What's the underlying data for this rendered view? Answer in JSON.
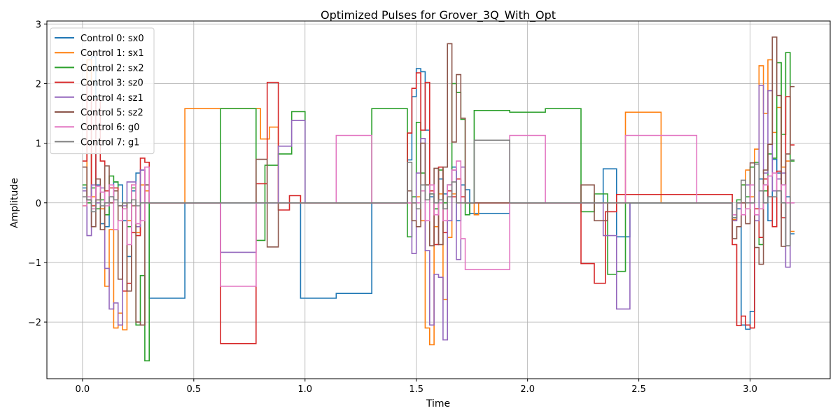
{
  "chart_data": {
    "type": "line",
    "step": "post",
    "title": "Optimized Pulses for Grover_3Q_With_Opt",
    "xlabel": "Time",
    "ylabel": "Amplitude",
    "xlim": [
      -0.16,
      3.36
    ],
    "ylim": [
      -2.95,
      3.05
    ],
    "xticks": [
      0.0,
      0.5,
      1.0,
      1.5,
      2.0,
      2.5,
      3.0
    ],
    "xtick_labels": [
      "0.0",
      "0.5",
      "1.0",
      "1.5",
      "2.0",
      "2.5",
      "3.0"
    ],
    "yticks": [
      -2,
      -1,
      0,
      1,
      2,
      3
    ],
    "ytick_labels": [
      "−2",
      "−1",
      "0",
      "1",
      "2",
      "3"
    ],
    "grid": true,
    "legend_position": "top-left",
    "series": [
      {
        "name": "Control 0: sx0",
        "color": "#1f77b4",
        "x": [
          0.0,
          0.02,
          0.04,
          0.06,
          0.08,
          0.1,
          0.12,
          0.14,
          0.16,
          0.18,
          0.2,
          0.22,
          0.24,
          0.26,
          0.28,
          0.3,
          0.46,
          0.62,
          0.78,
          0.98,
          1.14,
          1.3,
          1.46,
          1.48,
          1.5,
          1.52,
          1.54,
          1.56,
          1.58,
          1.6,
          1.62,
          1.64,
          1.66,
          1.68,
          1.7,
          1.72,
          1.74,
          1.76,
          1.92,
          2.08,
          2.24,
          2.34,
          2.4,
          2.46,
          2.92,
          2.94,
          2.96,
          2.98,
          3.0,
          3.02,
          3.04,
          3.06,
          3.08,
          3.1,
          3.12,
          3.14,
          3.16,
          3.18,
          3.2
        ],
        "y": [
          0.25,
          0.05,
          2.45,
          0.3,
          -0.35,
          -0.4,
          0.1,
          0.35,
          0.3,
          -0.3,
          -0.9,
          0.2,
          0.5,
          0.55,
          0.3,
          -1.6,
          0.0,
          0.0,
          0.0,
          -1.6,
          -1.52,
          0.0,
          0.72,
          1.78,
          2.25,
          2.2,
          1.22,
          0.1,
          -0.1,
          0.4,
          0.15,
          0.3,
          0.6,
          -0.3,
          0.3,
          0.22,
          -0.18,
          -0.18,
          0.0,
          0.0,
          0.0,
          0.57,
          -0.57,
          0.0,
          -0.2,
          -0.1,
          -2.05,
          -2.12,
          -1.82,
          -0.2,
          0.4,
          0.3,
          -0.3,
          0.73,
          0.5,
          0.3,
          0.1,
          -0.52,
          -0.52
        ]
      },
      {
        "name": "Control 1: sx1",
        "color": "#ff7f0e",
        "x": [
          0.0,
          0.02,
          0.04,
          0.06,
          0.08,
          0.1,
          0.12,
          0.14,
          0.16,
          0.18,
          0.2,
          0.22,
          0.24,
          0.26,
          0.28,
          0.3,
          0.46,
          0.62,
          0.78,
          0.8,
          0.84,
          0.88,
          0.92,
          0.98,
          1.46,
          1.5,
          1.52,
          1.54,
          1.56,
          1.58,
          1.6,
          1.62,
          1.64,
          1.66,
          1.68,
          1.7,
          1.72,
          1.76,
          1.78,
          2.44,
          2.6,
          2.92,
          2.94,
          2.96,
          2.98,
          3.0,
          3.02,
          3.04,
          3.06,
          3.08,
          3.1,
          3.12,
          3.14,
          3.16,
          3.18,
          3.2
        ],
        "y": [
          -0.05,
          2.4,
          0.1,
          0.05,
          -0.1,
          -1.4,
          -0.45,
          -2.1,
          -1.85,
          -2.13,
          -0.3,
          0.3,
          -0.5,
          0.3,
          0.2,
          0.0,
          1.58,
          1.58,
          1.58,
          1.07,
          1.27,
          0.0,
          0.0,
          0.0,
          0.0,
          0.1,
          -0.3,
          -2.1,
          -2.38,
          -0.4,
          0.15,
          -1.62,
          -0.58,
          0.15,
          0.0,
          0.0,
          0.0,
          -0.2,
          0.0,
          1.52,
          0.0,
          -0.28,
          0.0,
          0.3,
          0.55,
          0.1,
          0.9,
          2.3,
          1.5,
          2.4,
          1.18,
          1.6,
          0.6,
          0.7,
          -0.48,
          -0.48
        ]
      },
      {
        "name": "Control 2: sx2",
        "color": "#2ca02c",
        "x": [
          0.0,
          0.02,
          0.04,
          0.06,
          0.08,
          0.1,
          0.12,
          0.14,
          0.16,
          0.18,
          0.2,
          0.22,
          0.24,
          0.26,
          0.28,
          0.3,
          0.46,
          0.62,
          0.78,
          0.82,
          0.88,
          0.94,
          1.0,
          1.3,
          1.46,
          1.48,
          1.5,
          1.52,
          1.54,
          1.56,
          1.58,
          1.6,
          1.62,
          1.64,
          1.66,
          1.68,
          1.7,
          1.72,
          1.74,
          1.76,
          1.78,
          1.92,
          2.08,
          2.24,
          2.3,
          2.36,
          2.4,
          2.44,
          2.92,
          2.94,
          2.96,
          2.98,
          3.0,
          3.02,
          3.04,
          3.06,
          3.08,
          3.1,
          3.12,
          3.14,
          3.16,
          3.18,
          3.2
        ],
        "y": [
          0.3,
          0.0,
          0.25,
          -0.1,
          0.05,
          -0.2,
          0.45,
          0.35,
          -0.05,
          0.0,
          -0.4,
          0.25,
          -2.05,
          -1.22,
          -2.65,
          0.0,
          0.0,
          1.58,
          -0.63,
          0.63,
          0.82,
          1.53,
          0.0,
          1.58,
          -0.57,
          0.1,
          1.35,
          0.5,
          0.3,
          0.15,
          -0.1,
          0.55,
          0.0,
          0.3,
          2.0,
          1.85,
          1.4,
          -0.2,
          0.0,
          1.55,
          1.55,
          1.52,
          1.58,
          -0.15,
          0.15,
          -1.2,
          -1.15,
          0.0,
          -0.25,
          0.05,
          0.3,
          0.1,
          0.6,
          0.68,
          -0.7,
          0.2,
          0.82,
          0.75,
          2.35,
          1.15,
          2.52,
          0.7,
          0.7
        ]
      },
      {
        "name": "Control 3: sz0",
        "color": "#d62728",
        "x": [
          0.0,
          0.02,
          0.04,
          0.06,
          0.08,
          0.1,
          0.12,
          0.14,
          0.16,
          0.18,
          0.2,
          0.22,
          0.24,
          0.26,
          0.28,
          0.3,
          0.46,
          0.62,
          0.78,
          0.83,
          0.88,
          0.93,
          0.98,
          1.46,
          1.48,
          1.5,
          1.52,
          1.54,
          1.56,
          1.58,
          1.6,
          1.62,
          1.64,
          1.66,
          1.68,
          1.7,
          1.72,
          1.76,
          1.92,
          2.08,
          2.24,
          2.3,
          2.35,
          2.4,
          2.92,
          2.94,
          2.96,
          2.98,
          3.0,
          3.02,
          3.04,
          3.06,
          3.08,
          3.1,
          3.12,
          3.14,
          3.16,
          3.18,
          3.2
        ],
        "y": [
          0.7,
          1.98,
          -0.05,
          1.73,
          0.7,
          0.2,
          0.25,
          0.25,
          -0.05,
          -1.48,
          -1.35,
          -0.5,
          -0.55,
          0.75,
          0.68,
          0.0,
          0.0,
          -2.36,
          0.32,
          2.02,
          -0.12,
          0.12,
          0.0,
          1.17,
          1.92,
          2.18,
          1.22,
          2.02,
          0.2,
          -0.7,
          0.6,
          -0.5,
          0.2,
          0.1,
          0.4,
          0.1,
          0.0,
          0.0,
          0.0,
          0.0,
          -1.02,
          -1.35,
          -0.15,
          0.14,
          -0.7,
          -2.06,
          -1.9,
          -2.05,
          -2.1,
          -0.1,
          -0.58,
          0.4,
          0.1,
          -0.4,
          0.53,
          -0.25,
          1.78,
          0.97,
          0.97
        ]
      },
      {
        "name": "Control 4: sz1",
        "color": "#9467bd",
        "x": [
          0.0,
          0.02,
          0.04,
          0.06,
          0.08,
          0.1,
          0.12,
          0.14,
          0.16,
          0.18,
          0.2,
          0.22,
          0.24,
          0.26,
          0.28,
          0.3,
          0.46,
          0.62,
          0.78,
          0.88,
          0.94,
          1.0,
          1.46,
          1.48,
          1.5,
          1.52,
          1.54,
          1.56,
          1.58,
          1.6,
          1.62,
          1.64,
          1.66,
          1.68,
          1.7,
          1.72,
          1.74,
          1.76,
          2.34,
          2.4,
          2.46,
          2.92,
          2.94,
          2.96,
          2.98,
          3.0,
          3.02,
          3.04,
          3.06,
          3.08,
          3.1,
          3.12,
          3.14,
          3.16,
          3.18,
          3.2
        ],
        "y": [
          0.2,
          -0.55,
          0.3,
          0.0,
          0.25,
          -1.1,
          -1.78,
          -1.68,
          -2.05,
          -0.05,
          0.35,
          0.35,
          -0.4,
          0.55,
          0.0,
          0.0,
          0.0,
          -0.83,
          0.0,
          0.95,
          1.38,
          0.0,
          0.0,
          -0.85,
          0.5,
          1.08,
          -0.8,
          -2.05,
          -1.2,
          -1.25,
          -2.3,
          -0.3,
          0.55,
          -0.95,
          0.6,
          0.0,
          0.0,
          0.0,
          -0.55,
          -1.78,
          0.0,
          -0.3,
          0.0,
          0.0,
          0.3,
          0.0,
          -0.3,
          1.97,
          0.5,
          1.88,
          0.2,
          0.4,
          0.5,
          -1.08,
          0.0,
          0.0
        ]
      },
      {
        "name": "Control 5: sz2",
        "color": "#8c564b",
        "x": [
          0.0,
          0.02,
          0.04,
          0.06,
          0.08,
          0.1,
          0.12,
          0.14,
          0.16,
          0.18,
          0.2,
          0.22,
          0.24,
          0.26,
          0.28,
          0.3,
          0.46,
          0.62,
          0.78,
          0.83,
          0.88,
          0.98,
          1.46,
          1.48,
          1.5,
          1.52,
          1.54,
          1.56,
          1.58,
          1.6,
          1.62,
          1.64,
          1.66,
          1.68,
          1.7,
          1.72,
          1.74,
          1.76,
          2.24,
          2.3,
          2.36,
          2.92,
          2.94,
          2.96,
          2.98,
          3.0,
          3.02,
          3.04,
          3.06,
          3.08,
          3.1,
          3.12,
          3.14,
          3.16,
          3.18,
          3.2
        ],
        "y": [
          0.6,
          0.05,
          -0.4,
          0.4,
          -0.45,
          0.62,
          0.0,
          0.2,
          -1.28,
          0.0,
          -1.48,
          -0.05,
          -2.0,
          -2.05,
          0.3,
          0.0,
          0.0,
          0.0,
          0.73,
          -0.74,
          0.0,
          0.0,
          0.2,
          -0.3,
          -0.4,
          1.0,
          0.3,
          -0.72,
          0.58,
          -0.7,
          0.6,
          2.67,
          1.02,
          2.15,
          1.42,
          0.0,
          0.0,
          0.0,
          0.3,
          -0.3,
          0.0,
          -0.6,
          -0.4,
          0.0,
          -0.35,
          0.67,
          -0.75,
          -1.03,
          0.55,
          0.98,
          2.78,
          1.8,
          -0.73,
          0.82,
          1.95,
          1.95
        ]
      },
      {
        "name": "Control 6: g0",
        "color": "#e377c2",
        "x": [
          0.0,
          0.02,
          0.04,
          0.06,
          0.08,
          0.1,
          0.12,
          0.14,
          0.16,
          0.18,
          0.2,
          0.22,
          0.24,
          0.26,
          0.28,
          0.3,
          0.46,
          0.62,
          0.78,
          0.98,
          1.14,
          1.3,
          1.46,
          1.5,
          1.52,
          1.54,
          1.56,
          1.58,
          1.6,
          1.62,
          1.64,
          1.66,
          1.68,
          1.7,
          1.72,
          1.76,
          1.92,
          2.08,
          2.24,
          2.44,
          2.6,
          2.76,
          2.92,
          2.94,
          2.96,
          2.98,
          3.0,
          3.02,
          3.04,
          3.06,
          3.08,
          3.1,
          3.12,
          3.14,
          3.16,
          3.18,
          3.2
        ],
        "y": [
          -0.05,
          0.1,
          -0.1,
          0.28,
          0.18,
          -0.05,
          0.3,
          -0.45,
          -0.3,
          -0.1,
          -0.7,
          0.3,
          -0.35,
          -0.3,
          0.6,
          0.0,
          0.0,
          -1.4,
          0.0,
          0.0,
          1.13,
          0.0,
          0.0,
          0.0,
          0.2,
          -0.3,
          0.3,
          -0.2,
          0.0,
          -0.3,
          0.3,
          0.55,
          0.7,
          -0.6,
          -1.12,
          -1.12,
          1.13,
          0.0,
          0.0,
          1.13,
          1.13,
          0.0,
          -0.2,
          0.0,
          -0.2,
          -0.1,
          0.3,
          -0.2,
          -0.1,
          0.3,
          0.45,
          0.5,
          0.2,
          0.3,
          0.0,
          0.0,
          0.0
        ]
      },
      {
        "name": "Control 7: g1",
        "color": "#7f7f7f",
        "x": [
          0.0,
          0.02,
          0.04,
          0.06,
          0.08,
          0.1,
          0.12,
          0.14,
          0.16,
          0.18,
          0.2,
          0.22,
          0.24,
          0.26,
          0.28,
          0.3,
          0.46,
          1.46,
          1.48,
          1.5,
          1.52,
          1.54,
          1.56,
          1.58,
          1.6,
          1.62,
          1.64,
          1.66,
          1.68,
          1.7,
          1.72,
          1.74,
          1.76,
          1.92,
          2.92,
          2.94,
          2.96,
          2.98,
          3.0,
          3.02,
          3.04,
          3.06,
          3.08,
          3.1,
          3.12,
          3.14,
          3.16,
          3.18,
          3.2
        ],
        "y": [
          0.1,
          0.05,
          -0.15,
          0.05,
          -0.05,
          0.0,
          0.1,
          0.05,
          -0.05,
          0.0,
          0.0,
          0.05,
          -0.05,
          0.0,
          0.0,
          0.0,
          0.0,
          0.68,
          0.0,
          -0.1,
          0.3,
          0.05,
          0.15,
          0.0,
          0.05,
          -0.1,
          0.1,
          0.35,
          0.0,
          0.0,
          0.0,
          0.0,
          1.05,
          0.0,
          -0.25,
          0.0,
          0.38,
          0.0,
          0.0,
          0.65,
          0.2,
          0.0,
          0.1,
          0.1,
          0.2,
          0.0,
          -0.72,
          0.72,
          0.72
        ]
      }
    ]
  }
}
